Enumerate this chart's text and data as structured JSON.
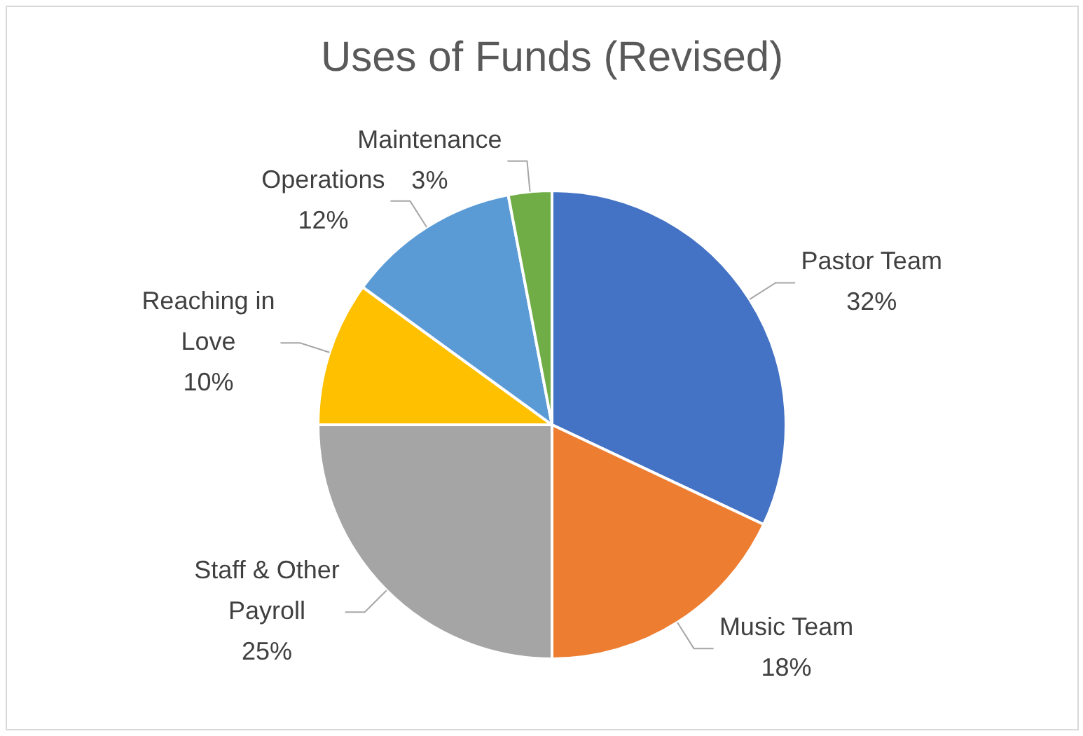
{
  "chart_data": {
    "type": "pie",
    "title": "Uses of Funds (Revised)",
    "categories": [
      "Pastor Team",
      "Music Team",
      "Staff & Other Payroll",
      "Reaching in Love",
      "Operations",
      "Maintenance"
    ],
    "values": [
      32,
      18,
      25,
      10,
      12,
      3
    ],
    "value_labels": [
      "32%",
      "18%",
      "25%",
      "10%",
      "12%",
      "3%"
    ],
    "colors": [
      "#4472c4",
      "#ed7d31",
      "#a5a5a5",
      "#ffc000",
      "#5b9bd5",
      "#70ad47"
    ],
    "legend": false
  }
}
